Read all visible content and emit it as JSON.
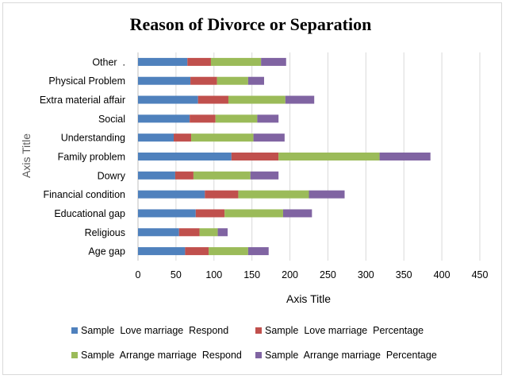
{
  "chart_data": {
    "type": "bar",
    "orientation": "horizontal",
    "stacked": true,
    "title": "Reason of Divorce or Separation",
    "xlabel": "Axis Title",
    "ylabel": "Axis Title",
    "xlim": [
      0,
      450
    ],
    "xticks": [
      0,
      50,
      100,
      150,
      200,
      250,
      300,
      350,
      400,
      450
    ],
    "grid": "vertical",
    "legend_position": "bottom",
    "categories": [
      "Age gap",
      "Religious",
      "Educational gap",
      "Financial condition",
      "Dowry",
      "Family problem",
      "Understanding",
      "Social",
      "Extra material affair",
      "Physical Problem",
      "Other  ."
    ],
    "series": [
      {
        "name": "Sample  Love marriage  Respond",
        "color": "#4f81bd",
        "values": [
          62,
          54,
          76,
          88,
          49,
          123,
          47,
          68,
          79,
          69,
          65
        ]
      },
      {
        "name": "Sample  Love marriage  Percentage",
        "color": "#c0504d",
        "values": [
          31,
          27,
          38,
          44,
          24,
          62,
          23,
          34,
          40,
          35,
          31
        ]
      },
      {
        "name": "Sample  Arrange marriage  Respond",
        "color": "#9bbb59",
        "values": [
          52,
          24,
          77,
          93,
          75,
          133,
          82,
          55,
          75,
          41,
          66
        ]
      },
      {
        "name": "Sample  Arrange marriage  Percentage",
        "color": "#8064a2",
        "values": [
          27,
          13,
          38,
          47,
          37,
          67,
          41,
          28,
          38,
          21,
          33
        ]
      }
    ]
  }
}
